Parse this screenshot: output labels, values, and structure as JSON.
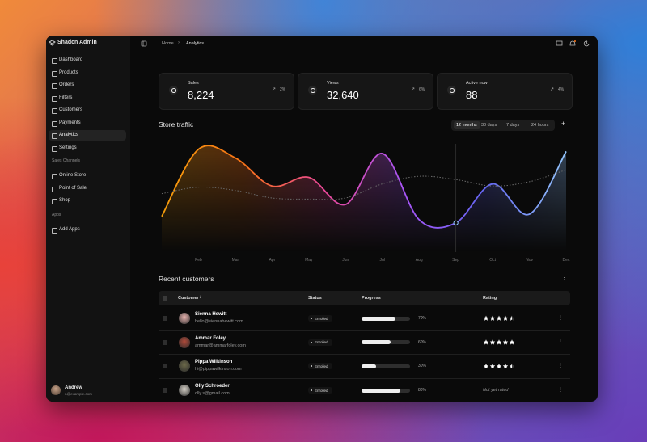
{
  "sidebar": {
    "brand": "Shadcn Admin",
    "nav": [
      "Dashboard",
      "Products",
      "Orders",
      "Filters",
      "Customers",
      "Payments",
      "Analytics",
      "Settings"
    ],
    "active_index": 6,
    "sections": [
      {
        "title": "Sales Channels",
        "items": [
          "Online Store",
          "Point of Sale",
          "Shop"
        ]
      },
      {
        "title": "Apps",
        "items": [
          "Add Apps"
        ]
      }
    ],
    "user": {
      "name": "Andrew",
      "email": "n@example.com"
    }
  },
  "breadcrumb": [
    "Home",
    "Analytics"
  ],
  "stats": [
    {
      "label": "Sales",
      "value": "8,224",
      "change": "2%"
    },
    {
      "label": "Views",
      "value": "32,640",
      "change": "6%"
    },
    {
      "label": "Active now",
      "value": "88",
      "change": "4%"
    }
  ],
  "chart_data": {
    "type": "line",
    "title": "Store traffic",
    "ranges": [
      "12 months",
      "30 days",
      "7 days",
      "24 hours"
    ],
    "selected_range": 0,
    "categories": [
      null,
      "Feb",
      "Mar",
      "Apr",
      "May",
      "Jun",
      "Jul",
      "Aug",
      "Sep",
      "Oct",
      "Nov",
      "Dec"
    ],
    "series": [
      {
        "colors": [
          "#f59e0b",
          "#f97316",
          "#ec4899",
          "#a855f7",
          "#6366f1",
          "#93c5fd"
        ],
        "values": [
          33,
          95,
          87,
          61,
          69,
          44,
          91,
          30,
          27,
          63,
          35,
          93
        ]
      },
      {
        "color": "#6b6b6b",
        "values": [
          54,
          60,
          57,
          50,
          49,
          50,
          63,
          70,
          67,
          61,
          65,
          76
        ]
      }
    ],
    "highlight_index": 8,
    "ylim": [
      0,
      100
    ]
  },
  "customers": {
    "title": "Recent customers",
    "columns": [
      "Customer",
      "Status",
      "Progress",
      "Rating"
    ],
    "rows": [
      {
        "name": "Sienna Hewitt",
        "email": "hello@siennahewitt.com",
        "status": "Enrolled",
        "progress": 70,
        "progress_label": "70%",
        "rating": 4.5
      },
      {
        "name": "Ammar Foley",
        "email": "ammar@ammarfoley.com",
        "status": "Enrolled",
        "progress": 60,
        "progress_label": "60%",
        "rating": 5
      },
      {
        "name": "Pippa Wilkinson",
        "email": "hi@pippawilkinson.com",
        "status": "Enrolled",
        "progress": 30,
        "progress_label": "30%",
        "rating": 4.5
      },
      {
        "name": "Olly Schroeder",
        "email": "olly.s@gmail.com",
        "status": "Enrolled",
        "progress": 80,
        "progress_label": "80%",
        "rating": null,
        "rating_label": "Not yet rated"
      }
    ]
  }
}
